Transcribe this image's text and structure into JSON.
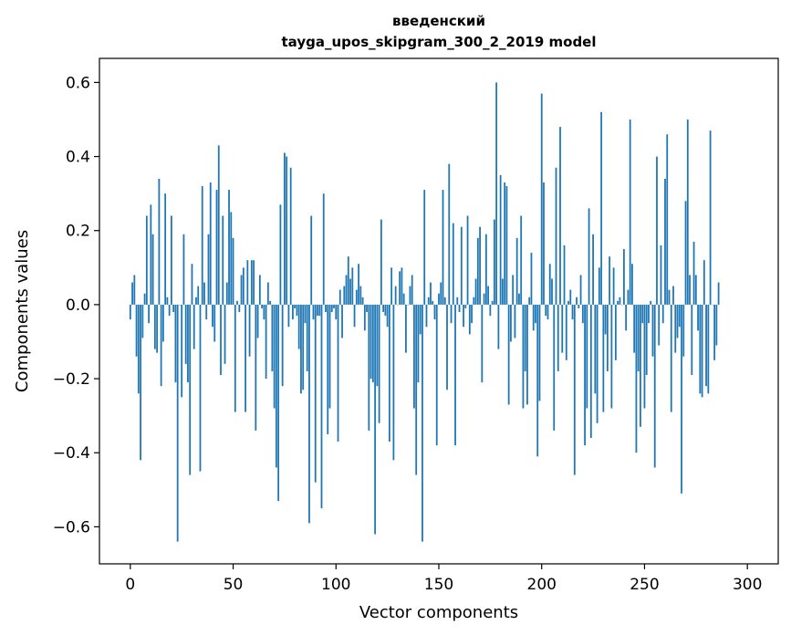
{
  "chart_data": {
    "type": "bar",
    "title_line1": "введенский",
    "title_line2": "tayga_upos_skipgram_300_2_2019 model",
    "xlabel": "Vector components",
    "ylabel": "Components values",
    "xlim": [
      -15,
      315
    ],
    "ylim": [
      -0.7,
      0.665
    ],
    "xticks": [
      0,
      50,
      100,
      150,
      200,
      250,
      300
    ],
    "xtick_labels": [
      "0",
      "50",
      "100",
      "150",
      "200",
      "250",
      "300"
    ],
    "yticks": [
      -0.6,
      -0.4,
      -0.2,
      0.0,
      0.2,
      0.4,
      0.6
    ],
    "ytick_labels": [
      "−0.6",
      "−0.4",
      "−0.2",
      "0.0",
      "0.2",
      "0.4",
      "0.6"
    ],
    "bar_color": "#1f77b4",
    "values": [
      -0.04,
      0.06,
      0.08,
      -0.14,
      -0.24,
      -0.42,
      -0.09,
      0.03,
      0.24,
      -0.05,
      0.27,
      0.19,
      -0.12,
      -0.13,
      0.34,
      -0.22,
      -0.1,
      0.3,
      0.02,
      -0.03,
      0.24,
      -0.02,
      -0.21,
      -0.64,
      0.0,
      -0.25,
      0.19,
      -0.16,
      -0.21,
      -0.46,
      0.11,
      -0.12,
      0.02,
      0.05,
      -0.45,
      0.32,
      0.06,
      -0.04,
      0.19,
      0.33,
      -0.06,
      -0.1,
      0.31,
      0.43,
      -0.19,
      0.24,
      -0.16,
      0.06,
      0.31,
      0.25,
      0.18,
      -0.29,
      0.01,
      -0.02,
      0.08,
      0.1,
      -0.29,
      0.12,
      -0.14,
      0.12,
      0.12,
      -0.34,
      -0.09,
      0.08,
      -0.01,
      -0.04,
      -0.2,
      0.06,
      0.01,
      -0.18,
      -0.28,
      -0.44,
      -0.53,
      0.27,
      -0.22,
      0.41,
      0.4,
      -0.06,
      0.37,
      -0.04,
      -0.01,
      -0.03,
      -0.12,
      -0.24,
      -0.23,
      -0.05,
      -0.18,
      -0.59,
      0.24,
      -0.04,
      -0.48,
      -0.03,
      -0.03,
      -0.55,
      0.3,
      -0.02,
      -0.35,
      -0.28,
      -0.02,
      -0.01,
      -0.04,
      -0.37,
      0.04,
      -0.09,
      0.05,
      0.08,
      0.13,
      0.07,
      0.1,
      -0.06,
      0.04,
      0.11,
      0.05,
      0.02,
      -0.07,
      -0.02,
      -0.34,
      -0.2,
      -0.21,
      -0.62,
      -0.22,
      -0.32,
      0.23,
      -0.02,
      -0.03,
      -0.06,
      -0.37,
      0.1,
      -0.42,
      0.05,
      0.0,
      0.09,
      0.1,
      0.03,
      -0.13,
      0.0,
      0.05,
      0.08,
      -0.28,
      -0.46,
      -0.21,
      -0.08,
      -0.64,
      0.31,
      -0.06,
      0.02,
      0.06,
      0.01,
      -0.04,
      -0.38,
      0.03,
      0.06,
      0.31,
      0.02,
      -0.23,
      0.38,
      -0.05,
      0.22,
      -0.38,
      0.02,
      -0.02,
      0.21,
      -0.06,
      -0.01,
      0.24,
      -0.08,
      -0.05,
      0.02,
      0.07,
      0.18,
      0.21,
      -0.21,
      0.03,
      0.19,
      0.05,
      -0.03,
      0.01,
      0.23,
      0.6,
      -0.12,
      0.35,
      0.07,
      0.33,
      0.32,
      -0.27,
      -0.1,
      0.08,
      -0.09,
      0.18,
      0.03,
      0.24,
      -0.28,
      -0.18,
      -0.27,
      0.02,
      0.14,
      -0.07,
      -0.05,
      -0.41,
      -0.26,
      0.57,
      0.33,
      -0.03,
      -0.04,
      0.11,
      0.07,
      -0.34,
      0.37,
      -0.18,
      0.48,
      -0.13,
      0.16,
      -0.15,
      0.01,
      0.04,
      -0.04,
      -0.46,
      0.02,
      -0.01,
      0.08,
      -0.05,
      -0.38,
      -0.28,
      0.26,
      -0.36,
      0.19,
      -0.24,
      -0.32,
      0.1,
      0.52,
      -0.29,
      -0.08,
      -0.18,
      0.13,
      -0.28,
      0.1,
      -0.15,
      0.01,
      0.02,
      0.0,
      0.15,
      -0.07,
      0.04,
      0.5,
      0.11,
      -0.13,
      -0.4,
      -0.18,
      -0.33,
      -0.05,
      -0.28,
      -0.19,
      -0.05,
      0.01,
      -0.14,
      -0.44,
      0.4,
      -0.11,
      0.16,
      -0.05,
      0.34,
      0.46,
      0.04,
      -0.29,
      0.05,
      -0.13,
      -0.09,
      -0.06,
      -0.51,
      -0.14,
      0.28,
      0.5,
      0.08,
      -0.19,
      0.17,
      0.08,
      -0.07,
      -0.24,
      -0.25,
      0.12,
      -0.22,
      -0.24,
      0.47,
      0.0,
      -0.15,
      -0.11,
      0.06
    ]
  }
}
